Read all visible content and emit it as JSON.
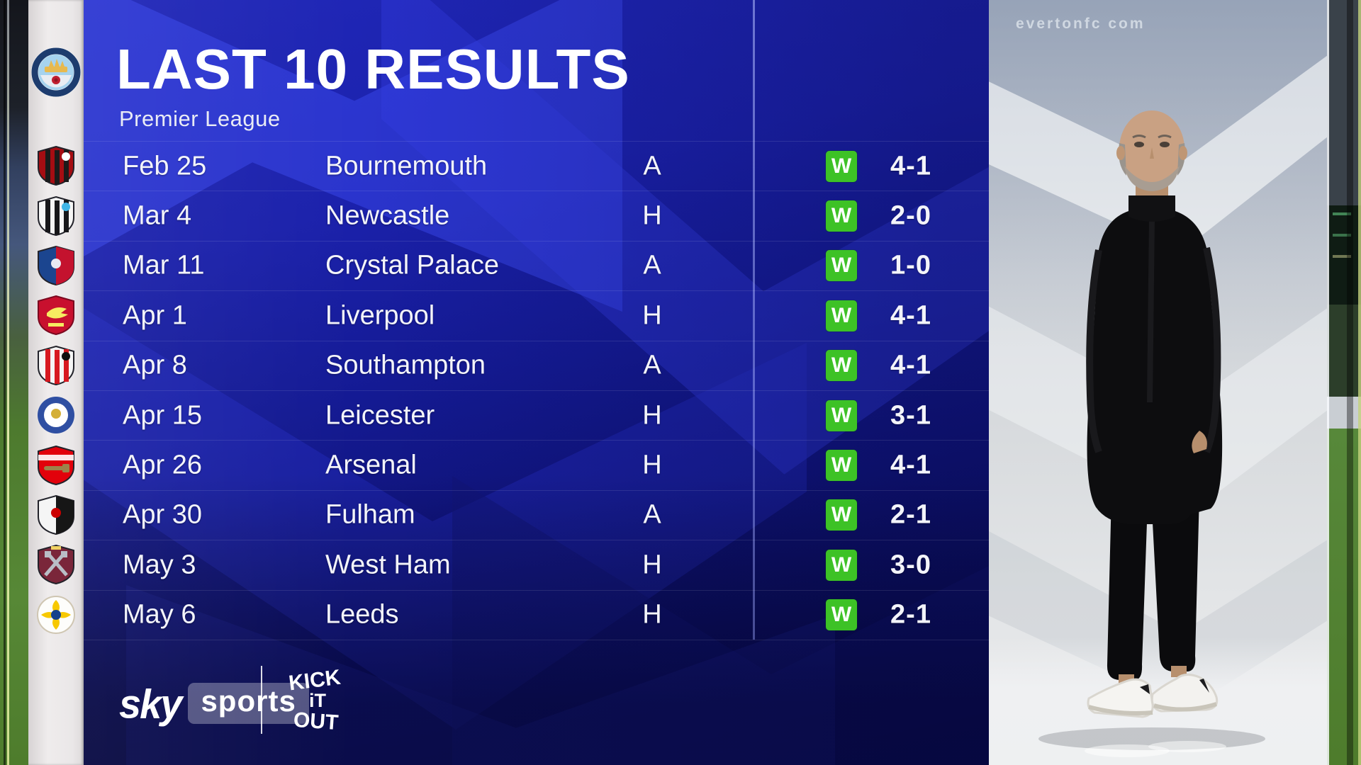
{
  "header": {
    "title": "LAST 10 RESULTS",
    "subtitle": "Premier League"
  },
  "club": {
    "name": "MANCHESTER CITY"
  },
  "table": {
    "rows": [
      {
        "team": "bournemouth",
        "date": "Feb 25",
        "opponent": "Bournemouth",
        "venue": "A",
        "result": "W",
        "score": "4-1",
        "badge": {
          "style": "shield-stripes",
          "c1": "#a50d12",
          "c2": "#1b1b1b",
          "c3": "#ffffff"
        }
      },
      {
        "team": "newcastle",
        "date": "Mar 4",
        "opponent": "Newcastle",
        "venue": "H",
        "result": "W",
        "score": "2-0",
        "badge": {
          "style": "shield-stripes",
          "c1": "#f5f5f5",
          "c2": "#17171a",
          "c3": "#41b6e6"
        }
      },
      {
        "team": "crystal-palace",
        "date": "Mar 11",
        "opponent": "Crystal Palace",
        "venue": "A",
        "result": "W",
        "score": "1-0",
        "badge": {
          "style": "shield-split",
          "c1": "#1b458f",
          "c2": "#c4122e",
          "c3": "#e7e9f2"
        }
      },
      {
        "team": "liverpool",
        "date": "Apr 1",
        "opponent": "Liverpool",
        "venue": "H",
        "result": "W",
        "score": "4-1",
        "badge": {
          "style": "shield-bird",
          "c1": "#c8102e",
          "c2": "#f6eb61",
          "c3": "#7a0920"
        }
      },
      {
        "team": "southampton",
        "date": "Apr 8",
        "opponent": "Southampton",
        "venue": "A",
        "result": "W",
        "score": "4-1",
        "badge": {
          "style": "shield-stripes",
          "c1": "#f5f5f5",
          "c2": "#d71920",
          "c3": "#101010"
        }
      },
      {
        "team": "leicester",
        "date": "Apr 15",
        "opponent": "Leicester",
        "venue": "H",
        "result": "W",
        "score": "3-1",
        "badge": {
          "style": "circle-ring",
          "c1": "#2f4fa2",
          "c2": "#ffffff",
          "c3": "#d4af37"
        }
      },
      {
        "team": "arsenal",
        "date": "Apr 26",
        "opponent": "Arsenal",
        "venue": "H",
        "result": "W",
        "score": "4-1",
        "badge": {
          "style": "shield-cannon",
          "c1": "#e2010b",
          "c2": "#ffffff",
          "c3": "#9c824a"
        }
      },
      {
        "team": "fulham",
        "date": "Apr 30",
        "opponent": "Fulham",
        "venue": "A",
        "result": "W",
        "score": "2-1",
        "badge": {
          "style": "shield-split",
          "c1": "#f5f5f5",
          "c2": "#161616",
          "c3": "#cc0000"
        }
      },
      {
        "team": "west-ham",
        "date": "May 3",
        "opponent": "West Ham",
        "venue": "H",
        "result": "W",
        "score": "3-0",
        "badge": {
          "style": "shield-hammers",
          "c1": "#7a263a",
          "c2": "#b9bec6",
          "c3": "#f0d264"
        }
      },
      {
        "team": "leeds",
        "date": "May 6",
        "opponent": "Leeds",
        "venue": "H",
        "result": "W",
        "score": "2-1",
        "badge": {
          "style": "circle-flower",
          "c1": "#fdfdfb",
          "c2": "#f7c800",
          "c3": "#15418c"
        }
      }
    ]
  },
  "footer": {
    "sky_label": "sky",
    "sports_label": "sports",
    "kick_it_out": {
      "line1": "KICK",
      "line2": "iT",
      "line3": "OUT"
    }
  },
  "right_panel": {
    "stadium_text": "evertonfc com"
  },
  "colors": {
    "win_green": "#3dc226",
    "panel_blue": "#1b21ab",
    "stripe_blue": "#3a48ee",
    "panel_dark": "#0a0c50",
    "rail_gray": "#eceaeb",
    "photo_panel_gray": "#d2d6da",
    "text_white": "#f3f4fa"
  }
}
